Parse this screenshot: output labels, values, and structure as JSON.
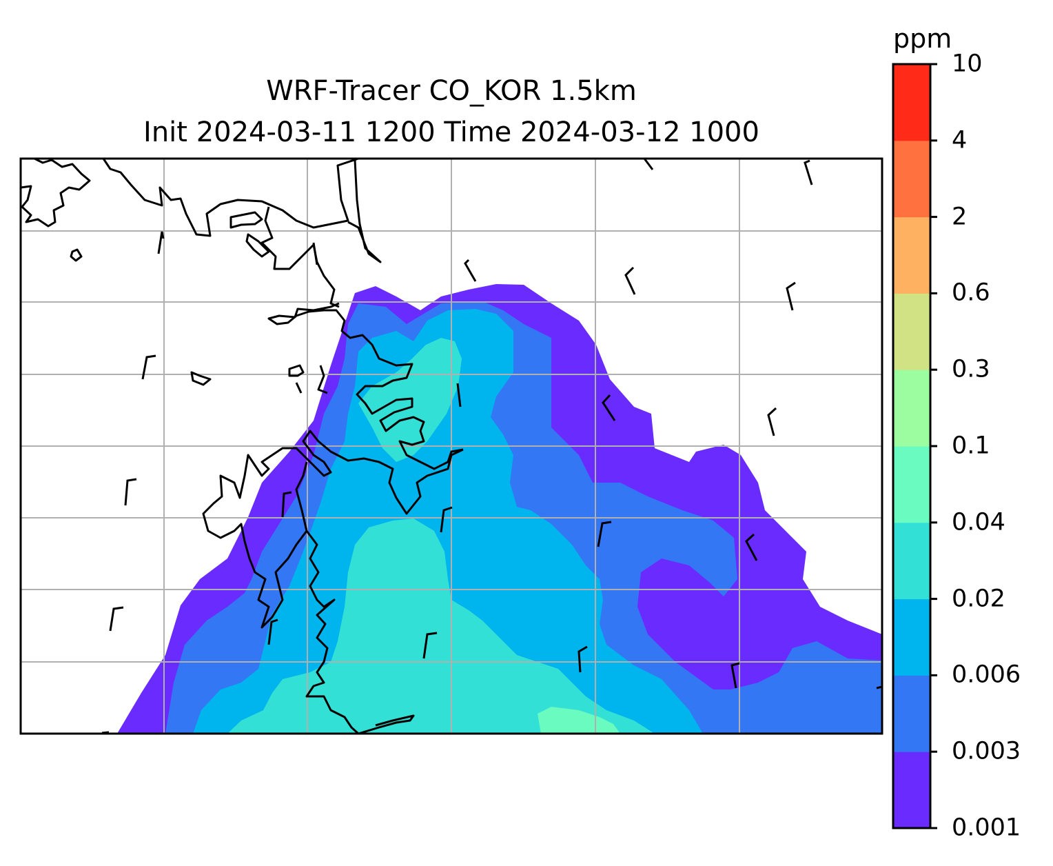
{
  "title": {
    "line1": "WRF-Tracer CO_KOR 1.5km",
    "line2": "Init 2024-03-11 1200 Time 2024-03-12 1000"
  },
  "colorbar": {
    "unit": "ppm",
    "levels": [
      "0.001",
      "0.003",
      "0.006",
      "0.02",
      "0.04",
      "0.1",
      "0.3",
      "0.6",
      "2",
      "4",
      "10"
    ],
    "colors": [
      "#6a2bff",
      "#3377f5",
      "#00b4ed",
      "#33e0d6",
      "#69fbbf",
      "#9bfca0",
      "#d0e283",
      "#ffb162",
      "#ff713f",
      "#ff2b18"
    ]
  },
  "map": {
    "grid": true,
    "coastline_color": "#000000",
    "grid_color": "#b0b0b0",
    "wind_barbs": "north-northwesterly"
  }
}
